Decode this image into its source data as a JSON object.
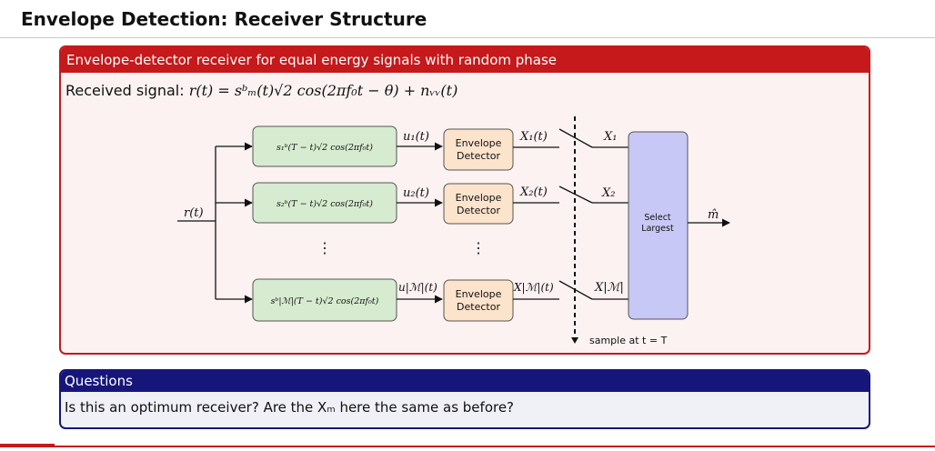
{
  "slide": {
    "title": "Envelope Detection: Receiver Structure"
  },
  "block": {
    "header": "Envelope-detector receiver for equal energy signals with random phase",
    "received_label": "Received signal:",
    "received_formula": "r(t) = sᵇₘ(t)√2 cos(2πf₀t − θ) + nᵥᵥ(t)"
  },
  "diagram": {
    "input_label": "r(t)",
    "branches": [
      {
        "filter": "s₁ᵇ(T − t)√2 cos(2πf₀t)",
        "u": "u₁(t)",
        "detector": [
          "Envelope",
          "Detector"
        ],
        "x": "X₁(t)",
        "sample": "X₁"
      },
      {
        "filter": "s₂ᵇ(T − t)√2 cos(2πf₀t)",
        "u": "u₂(t)",
        "detector": [
          "Envelope",
          "Detector"
        ],
        "x": "X₂(t)",
        "sample": "X₂"
      },
      {
        "filter": "sᵇ|ℳ|(T − t)√2 cos(2πf₀t)",
        "u": "u|ℳ|(t)",
        "detector": [
          "Envelope",
          "Detector"
        ],
        "x": "X|ℳ|(t)",
        "sample": "X|ℳ|"
      }
    ],
    "vdots": "⋮",
    "select": [
      "Select",
      "Largest"
    ],
    "output_label": "m̂",
    "sample_note": "sample at t = T"
  },
  "questions": {
    "header": "Questions",
    "text": "Is this an optimum receiver? Are the Xₘ here the same as before?"
  },
  "colors": {
    "red": "#c5191b",
    "navy": "#16167a",
    "filter_fill": "#d7ebd0",
    "detector_fill": "#fbe3cc",
    "select_fill": "#c8c8f7"
  }
}
